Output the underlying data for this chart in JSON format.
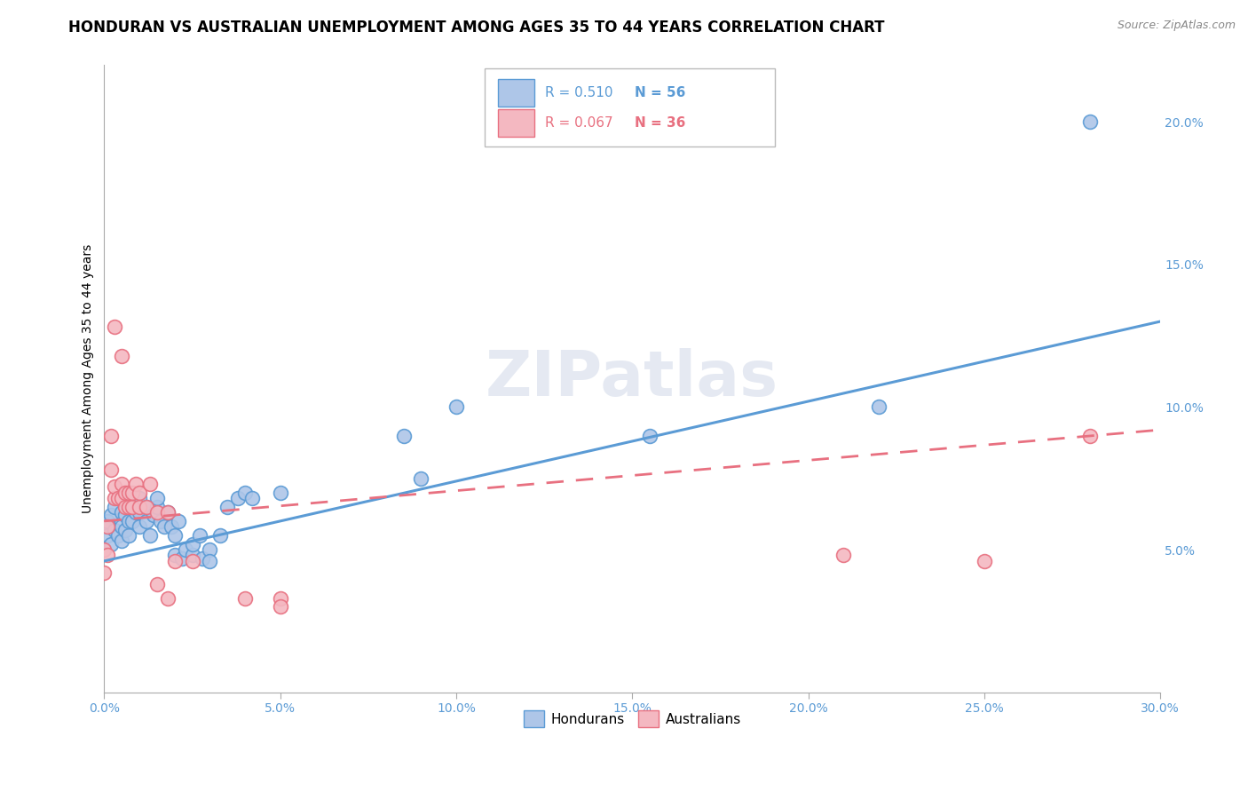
{
  "title": "HONDURAN VS AUSTRALIAN UNEMPLOYMENT AMONG AGES 35 TO 44 YEARS CORRELATION CHART",
  "source": "Source: ZipAtlas.com",
  "ylabel": "Unemployment Among Ages 35 to 44 years",
  "xlim": [
    0.0,
    0.3
  ],
  "ylim": [
    0.0,
    0.22
  ],
  "xticks": [
    0.0,
    0.05,
    0.1,
    0.15,
    0.2,
    0.25,
    0.3
  ],
  "yticks_right": [
    0.05,
    0.1,
    0.15,
    0.2
  ],
  "background_color": "#ffffff",
  "honduran_color": "#aec6e8",
  "honduran_edge_color": "#5b9bd5",
  "australian_color": "#f4b8c1",
  "australian_edge_color": "#e87080",
  "honduran_R": "0.510",
  "honduran_N": "56",
  "australian_R": "0.067",
  "australian_N": "36",
  "title_fontsize": 12,
  "axis_label_fontsize": 10,
  "tick_fontsize": 10,
  "legend_fontsize": 11,
  "watermark": "ZIPatlas",
  "honduran_points": [
    [
      0.0,
      0.05
    ],
    [
      0.0,
      0.058
    ],
    [
      0.001,
      0.055
    ],
    [
      0.001,
      0.06
    ],
    [
      0.002,
      0.052
    ],
    [
      0.002,
      0.062
    ],
    [
      0.003,
      0.057
    ],
    [
      0.003,
      0.065
    ],
    [
      0.004,
      0.055
    ],
    [
      0.005,
      0.053
    ],
    [
      0.005,
      0.058
    ],
    [
      0.005,
      0.063
    ],
    [
      0.006,
      0.057
    ],
    [
      0.006,
      0.062
    ],
    [
      0.007,
      0.055
    ],
    [
      0.007,
      0.06
    ],
    [
      0.007,
      0.065
    ],
    [
      0.008,
      0.06
    ],
    [
      0.008,
      0.065
    ],
    [
      0.009,
      0.063
    ],
    [
      0.01,
      0.058
    ],
    [
      0.01,
      0.063
    ],
    [
      0.01,
      0.068
    ],
    [
      0.012,
      0.06
    ],
    [
      0.012,
      0.065
    ],
    [
      0.013,
      0.055
    ],
    [
      0.014,
      0.062
    ],
    [
      0.015,
      0.065
    ],
    [
      0.015,
      0.068
    ],
    [
      0.016,
      0.06
    ],
    [
      0.017,
      0.058
    ],
    [
      0.018,
      0.063
    ],
    [
      0.019,
      0.058
    ],
    [
      0.02,
      0.048
    ],
    [
      0.02,
      0.055
    ],
    [
      0.021,
      0.06
    ],
    [
      0.022,
      0.047
    ],
    [
      0.023,
      0.05
    ],
    [
      0.025,
      0.048
    ],
    [
      0.025,
      0.052
    ],
    [
      0.027,
      0.055
    ],
    [
      0.028,
      0.047
    ],
    [
      0.03,
      0.05
    ],
    [
      0.03,
      0.046
    ],
    [
      0.033,
      0.055
    ],
    [
      0.035,
      0.065
    ],
    [
      0.038,
      0.068
    ],
    [
      0.04,
      0.07
    ],
    [
      0.042,
      0.068
    ],
    [
      0.05,
      0.07
    ],
    [
      0.085,
      0.09
    ],
    [
      0.09,
      0.075
    ],
    [
      0.1,
      0.1
    ],
    [
      0.155,
      0.09
    ],
    [
      0.22,
      0.1
    ],
    [
      0.28,
      0.2
    ]
  ],
  "australian_points": [
    [
      0.0,
      0.042
    ],
    [
      0.0,
      0.05
    ],
    [
      0.001,
      0.048
    ],
    [
      0.001,
      0.058
    ],
    [
      0.002,
      0.078
    ],
    [
      0.002,
      0.09
    ],
    [
      0.003,
      0.068
    ],
    [
      0.003,
      0.072
    ],
    [
      0.003,
      0.128
    ],
    [
      0.004,
      0.068
    ],
    [
      0.005,
      0.068
    ],
    [
      0.005,
      0.073
    ],
    [
      0.005,
      0.118
    ],
    [
      0.006,
      0.065
    ],
    [
      0.006,
      0.07
    ],
    [
      0.007,
      0.065
    ],
    [
      0.007,
      0.07
    ],
    [
      0.008,
      0.065
    ],
    [
      0.008,
      0.07
    ],
    [
      0.009,
      0.073
    ],
    [
      0.01,
      0.065
    ],
    [
      0.01,
      0.07
    ],
    [
      0.012,
      0.065
    ],
    [
      0.013,
      0.073
    ],
    [
      0.015,
      0.063
    ],
    [
      0.015,
      0.038
    ],
    [
      0.018,
      0.063
    ],
    [
      0.018,
      0.033
    ],
    [
      0.02,
      0.046
    ],
    [
      0.025,
      0.046
    ],
    [
      0.04,
      0.033
    ],
    [
      0.05,
      0.033
    ],
    [
      0.05,
      0.03
    ],
    [
      0.21,
      0.048
    ],
    [
      0.25,
      0.046
    ],
    [
      0.28,
      0.09
    ]
  ],
  "honduran_trendline": [
    [
      0.0,
      0.046
    ],
    [
      0.3,
      0.13
    ]
  ],
  "australian_trendline": [
    [
      0.0,
      0.06
    ],
    [
      0.3,
      0.092
    ]
  ]
}
